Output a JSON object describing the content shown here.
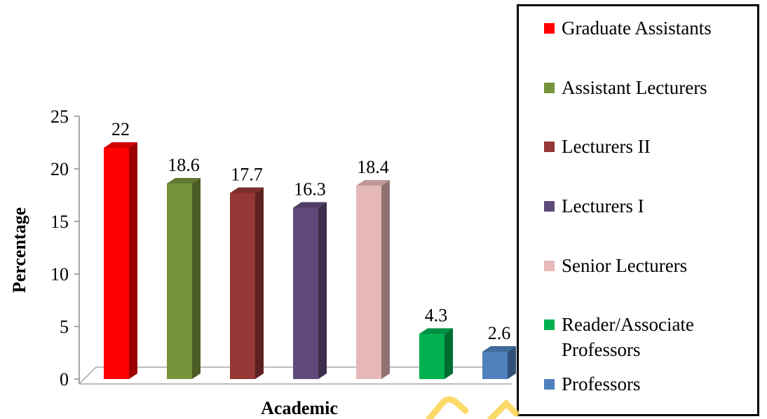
{
  "chart_data": {
    "type": "bar",
    "categories": [
      "Graduate Assistants",
      "Assistant Lecturers",
      "Lecturers II",
      "Lecturers I",
      "Senior Lecturers",
      "Reader/Associate Professors",
      "Professors"
    ],
    "values": [
      22,
      18.6,
      17.7,
      16.3,
      18.4,
      4.3,
      2.6
    ],
    "value_labels": [
      "22",
      "18.6",
      "17.7",
      "16.3",
      "18.4",
      "4.3",
      "2.6"
    ],
    "colors": [
      "#ff0000",
      "#77933c",
      "#953735",
      "#604a7b",
      "#e6b9b8",
      "#00b050",
      "#4f81bd"
    ],
    "xlabel": "Academic",
    "ylabel": "Percentage",
    "ylim": [
      0,
      25
    ],
    "yticks": [
      "0",
      "5",
      "10",
      "15",
      "20",
      "25"
    ],
    "grid": false,
    "legend_position": "right"
  },
  "legend": {
    "items": [
      {
        "label": "Graduate Assistants",
        "color": "#ff0000"
      },
      {
        "label": "Assistant Lecturers",
        "color": "#77933c"
      },
      {
        "label": "Lecturers II",
        "color": "#953735"
      },
      {
        "label": "Lecturers I",
        "color": "#604a7b"
      },
      {
        "label": "Senior Lecturers",
        "color": "#e6b9b8"
      },
      {
        "label": "Reader/Associate\nProfessors",
        "color": "#00b050"
      },
      {
        "label": "Professors",
        "color": "#4f81bd"
      }
    ]
  }
}
